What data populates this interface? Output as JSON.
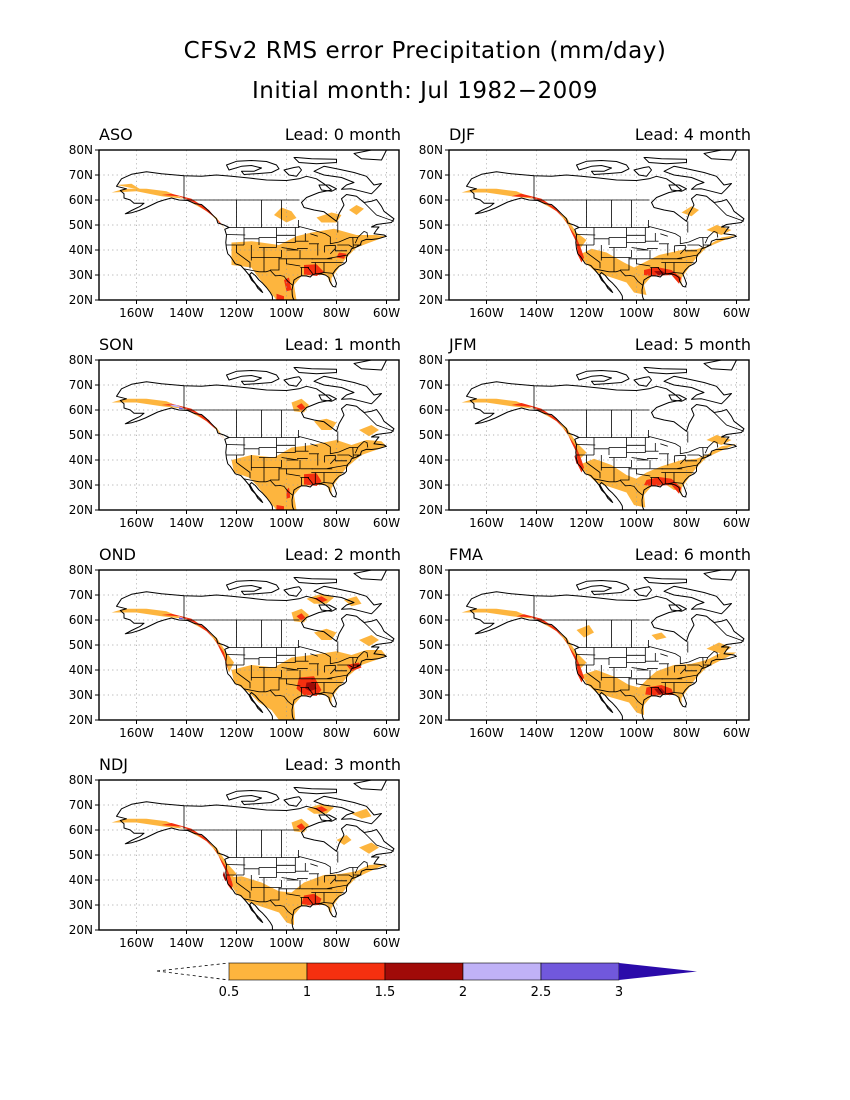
{
  "title": "CFSv2 RMS error Precipitation (mm/day)",
  "subtitle": "Initial month: Jul 1982−2009",
  "axes": {
    "lat_labels": [
      "80N",
      "70N",
      "60N",
      "50N",
      "40N",
      "30N",
      "20N"
    ],
    "lon_labels": [
      "160W",
      "140W",
      "120W",
      "100W",
      "80W",
      "60W"
    ]
  },
  "panels": [
    {
      "season": "ASO",
      "lead": "Lead: 0 month"
    },
    {
      "season": "DJF",
      "lead": "Lead: 4 month"
    },
    {
      "season": "SON",
      "lead": "Lead: 1 month"
    },
    {
      "season": "JFM",
      "lead": "Lead: 5 month"
    },
    {
      "season": "OND",
      "lead": "Lead: 2 month"
    },
    {
      "season": "FMA",
      "lead": "Lead: 6 month"
    },
    {
      "season": "NDJ",
      "lead": "Lead: 3 month"
    }
  ],
  "colorbar": {
    "labels": [
      "0.5",
      "1",
      "1.5",
      "2",
      "2.5",
      "3"
    ],
    "colors": [
      "#FDB53E",
      "#F5300F",
      "#A00A08",
      "#C0B2F7",
      "#7158DC",
      "#2B0BAA"
    ]
  }
}
